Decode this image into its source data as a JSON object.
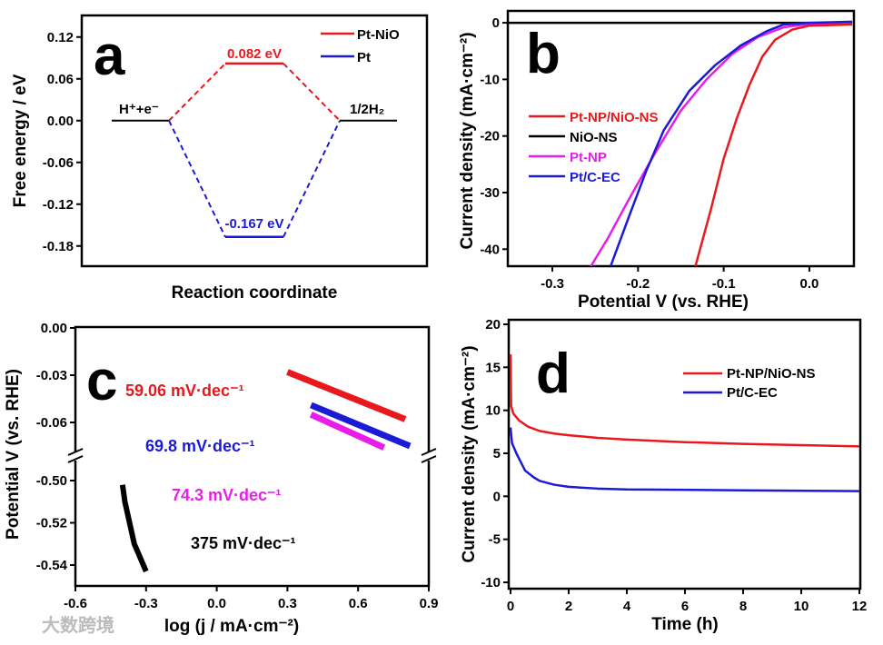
{
  "chart_data": [
    {
      "id": "a",
      "panel_label": "a",
      "type": "line",
      "title": "",
      "xlabel": "Reaction coordinate",
      "ylabel": "Free energy / eV",
      "ylim": [
        -0.209,
        0.151
      ],
      "yticks": [
        "0.12",
        "0.06",
        "0.00",
        "-0.06",
        "-0.12",
        "-0.18"
      ],
      "ytick_values": [
        0.12,
        0.06,
        0.0,
        -0.06,
        -0.12,
        -0.18
      ],
      "states": [
        {
          "label": "H⁺+e⁻",
          "energy": 0.0
        },
        {
          "label": "1/2H₂",
          "energy": 0.0
        }
      ],
      "series": [
        {
          "name": "Pt-NiO",
          "color": "#e8191d",
          "intermediate_energy": 0.082,
          "annotation": "0.082 eV"
        },
        {
          "name": "Pt",
          "color": "#1b1bd6",
          "intermediate_energy": -0.167,
          "annotation": "-0.167 eV"
        }
      ],
      "legend": "top-right"
    },
    {
      "id": "b",
      "panel_label": "b",
      "type": "line",
      "xlabel": "Potential V (vs. RHE)",
      "ylabel": "Current density (mA·cm⁻²)",
      "xlim": [
        -0.352,
        0.052
      ],
      "ylim": [
        -43,
        2.1
      ],
      "xticks": [
        "-0.3",
        "-0.2",
        "-0.1",
        "0.0"
      ],
      "xtick_values": [
        -0.3,
        -0.2,
        -0.1,
        0.0
      ],
      "yticks": [
        "0",
        "-10",
        "-20",
        "-30",
        "-40"
      ],
      "ytick_values": [
        0,
        -10,
        -20,
        -30,
        -40
      ],
      "legend": "center-left",
      "series": [
        {
          "name": "Pt-NP/NiO-NS",
          "color": "#e8191d",
          "x": [
            0.05,
            0.0,
            -0.02,
            -0.04,
            -0.055,
            -0.07,
            -0.085,
            -0.1,
            -0.115,
            -0.133
          ],
          "y": [
            -0.3,
            -0.5,
            -1.2,
            -3,
            -6,
            -11,
            -17,
            -24,
            -33,
            -43
          ]
        },
        {
          "name": "NiO-NS",
          "color": "#000000",
          "x": [
            0.05,
            -0.352
          ],
          "y": [
            0,
            0
          ]
        },
        {
          "name": "Pt-NP",
          "color": "#e81ee8",
          "x": [
            0.05,
            0.0,
            -0.03,
            -0.06,
            -0.09,
            -0.12,
            -0.15,
            -0.18,
            -0.21,
            -0.235,
            -0.255
          ],
          "y": [
            0.1,
            -0.2,
            -0.8,
            -2.5,
            -5.5,
            -10,
            -15.5,
            -23,
            -31,
            -38,
            -43
          ]
        },
        {
          "name": "Pt/C-EC",
          "color": "#1b1bd6",
          "x": [
            0.05,
            0.0,
            -0.03,
            -0.05,
            -0.08,
            -0.11,
            -0.14,
            -0.17,
            -0.19,
            -0.21,
            -0.232
          ],
          "y": [
            0.2,
            0.0,
            -0.3,
            -1.5,
            -4,
            -7.5,
            -12,
            -19,
            -26,
            -34,
            -43
          ]
        }
      ]
    },
    {
      "id": "c",
      "panel_label": "c",
      "type": "line",
      "xlabel": "log (j / mA·cm⁻²)",
      "ylabel": "Potential V (vs. RHE)",
      "xlim": [
        -0.6,
        0.9
      ],
      "y_broken_axis": {
        "upper": [
          -0.077,
          0.0
        ],
        "lower": [
          -0.548,
          -0.49
        ]
      },
      "xticks": [
        "-0.6",
        "-0.3",
        "0.0",
        "0.3",
        "0.6",
        "0.9"
      ],
      "xtick_values": [
        -0.6,
        -0.3,
        0.0,
        0.3,
        0.6,
        0.9
      ],
      "yticks": [
        "0.00",
        "-0.03",
        "-0.06",
        "-0.50",
        "-0.52",
        "-0.54"
      ],
      "ytick_values": [
        0.0,
        -0.03,
        -0.06,
        -0.5,
        -0.52,
        -0.54
      ],
      "series": [
        {
          "name": "Pt-NP/NiO-NS",
          "color": "#e8191d",
          "annotation": "59.06 mV·dec⁻¹",
          "x": [
            0.3,
            0.8
          ],
          "y": [
            -0.028,
            -0.058
          ]
        },
        {
          "name": "Pt/C-EC",
          "color": "#1b1bd6",
          "annotation": "69.8 mV·dec⁻¹",
          "x": [
            0.4,
            0.82
          ],
          "y": [
            -0.049,
            -0.075
          ]
        },
        {
          "name": "Pt-NP",
          "color": "#e81ee8",
          "annotation": "74.3 mV·dec⁻¹",
          "x": [
            0.4,
            0.71
          ],
          "y": [
            -0.055,
            -0.076
          ]
        },
        {
          "name": "NiO-NS",
          "color": "#000000",
          "annotation": "375 mV·dec⁻¹",
          "x": [
            -0.4,
            -0.39,
            -0.37,
            -0.35,
            -0.3
          ],
          "y": [
            -0.502,
            -0.51,
            -0.52,
            -0.53,
            -0.543
          ]
        }
      ]
    },
    {
      "id": "d",
      "panel_label": "d",
      "type": "line",
      "xlabel": "Time (h)",
      "ylabel": "Current density (mA·cm⁻²)",
      "xlim": [
        0,
        12
      ],
      "ylim": [
        -10.7,
        20
      ],
      "xticks": [
        "0",
        "2",
        "4",
        "6",
        "8",
        "10",
        "12"
      ],
      "xtick_values": [
        0,
        2,
        4,
        6,
        8,
        10,
        12
      ],
      "yticks": [
        "20",
        "15",
        "10",
        "5",
        "0",
        "-5",
        "-10"
      ],
      "ytick_values": [
        20,
        15,
        10,
        5,
        0,
        -5,
        -10
      ],
      "legend": "top-right",
      "series": [
        {
          "name": "Pt-NP/NiO-NS",
          "color": "#e8191d",
          "x": [
            0,
            0.02,
            0.1,
            0.3,
            0.6,
            1,
            1.5,
            2,
            3,
            4,
            6,
            8,
            10,
            12
          ],
          "y": [
            16.5,
            10.5,
            9.6,
            8.8,
            8.1,
            7.6,
            7.3,
            7.1,
            6.8,
            6.6,
            6.3,
            6.1,
            5.95,
            5.8
          ]
        },
        {
          "name": "Pt/C-EC",
          "color": "#1b1bd6",
          "x": [
            0,
            0.05,
            0.2,
            0.5,
            0.8,
            1,
            1.5,
            2,
            3,
            4,
            8,
            12
          ],
          "y": [
            8,
            6.2,
            5,
            3,
            2.2,
            1.8,
            1.35,
            1.1,
            0.9,
            0.8,
            0.7,
            0.6
          ]
        }
      ]
    }
  ],
  "watermark": "大数跨境"
}
